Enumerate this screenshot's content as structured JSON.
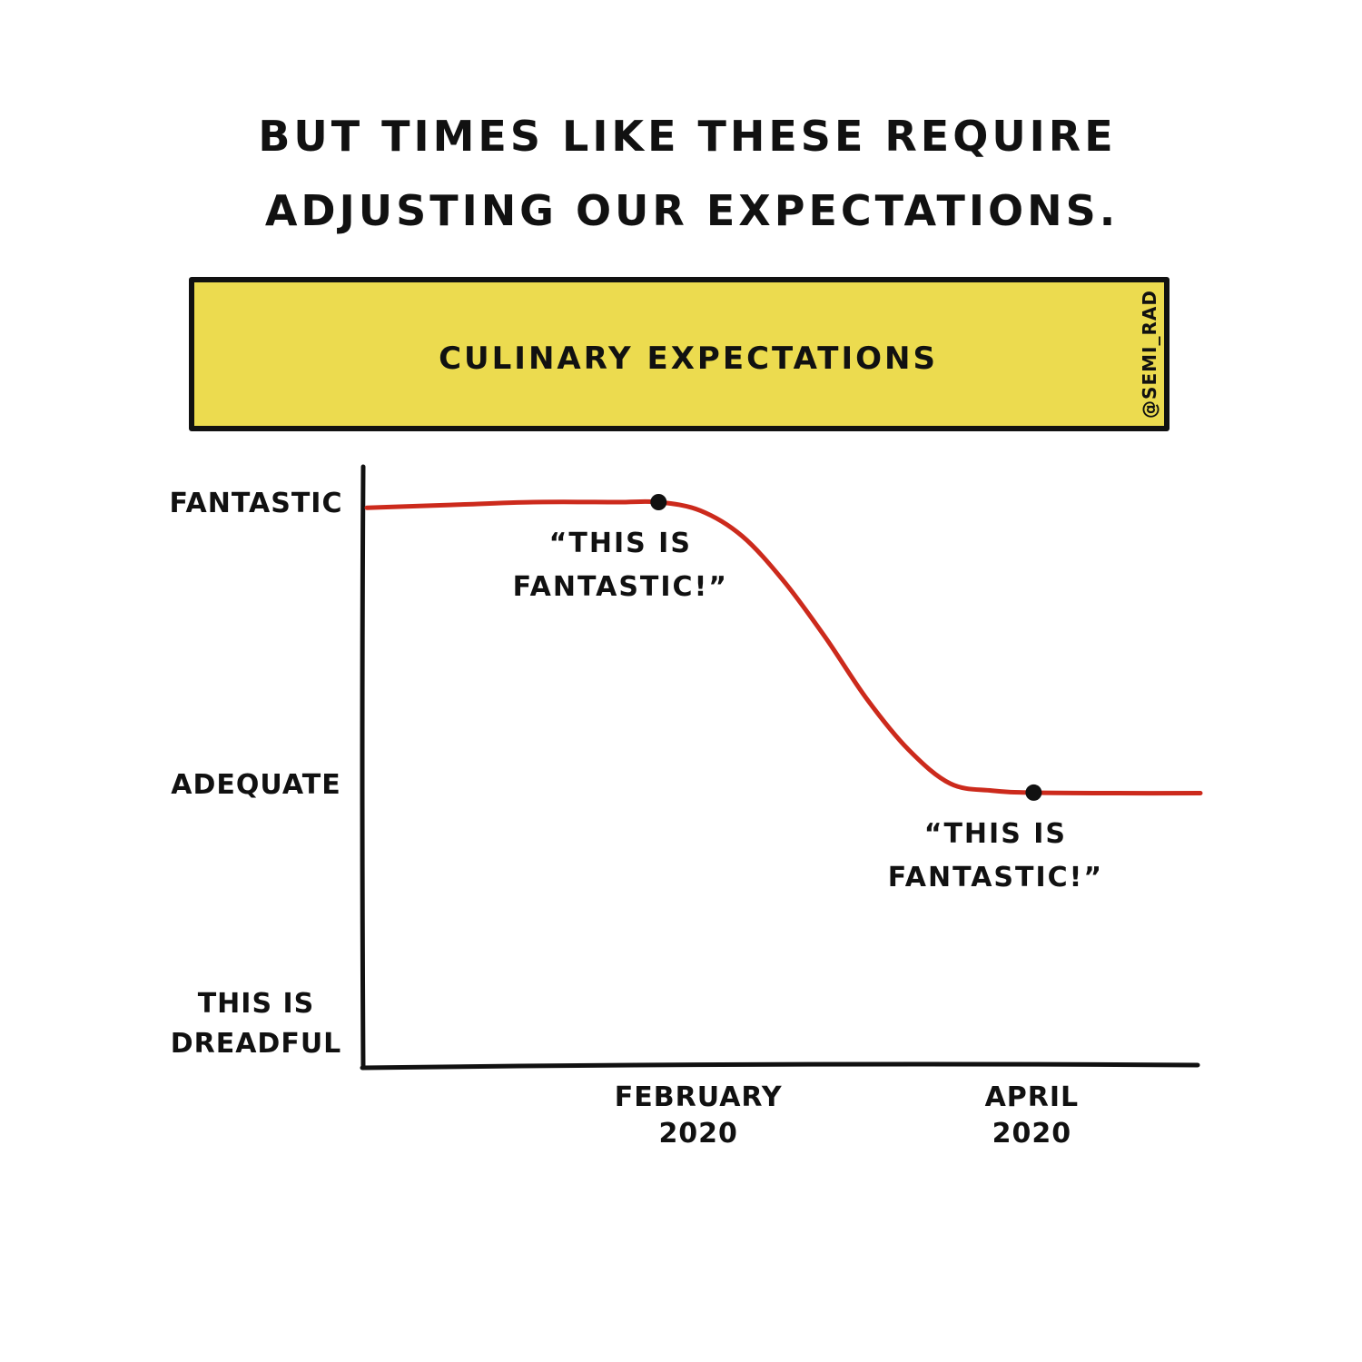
{
  "caption": {
    "line1": "BUT TIMES LIKE THESE REQUIRE",
    "line2": "ADJUSTING OUR EXPECTATIONS."
  },
  "banner": {
    "title": "CULINARY EXPECTATIONS",
    "handle": "@SEMI_RAD",
    "color": "#ecdb4f"
  },
  "chart_data": {
    "type": "line",
    "title": "CULINARY EXPECTATIONS",
    "xlabel": "",
    "ylabel": "",
    "x_ticks": [
      {
        "value": 2,
        "lines": [
          "FEBRUARY",
          "2020"
        ]
      },
      {
        "value": 4,
        "lines": [
          "APRIL",
          "2020"
        ]
      }
    ],
    "y_ticks": [
      {
        "value": 2,
        "lines": [
          "FANTASTIC"
        ]
      },
      {
        "value": 1,
        "lines": [
          "ADEQUATE"
        ]
      },
      {
        "value": 0,
        "lines": [
          "THIS IS",
          "DREADFUL"
        ]
      }
    ],
    "xlim": [
      0,
      5
    ],
    "ylim": [
      0,
      2
    ],
    "grid": false,
    "series": [
      {
        "color": "#cc2a1c",
        "points": [
          [
            0.0,
            1.98
          ],
          [
            0.5,
            1.99
          ],
          [
            1.0,
            2.0
          ],
          [
            1.5,
            2.0
          ],
          [
            1.75,
            2.0
          ],
          [
            2.0,
            1.97
          ],
          [
            2.25,
            1.88
          ],
          [
            2.5,
            1.72
          ],
          [
            2.75,
            1.52
          ],
          [
            3.0,
            1.3
          ],
          [
            3.25,
            1.12
          ],
          [
            3.5,
            1.0
          ],
          [
            3.75,
            0.975
          ],
          [
            4.0,
            0.968
          ],
          [
            4.5,
            0.966
          ],
          [
            5.0,
            0.966
          ]
        ],
        "markers": [
          {
            "x": 1.75,
            "y": 2.0,
            "label_lines": [
              "“THIS IS",
              "FANTASTIC!”"
            ]
          },
          {
            "x": 4.0,
            "y": 0.968,
            "label_lines": [
              "“THIS IS",
              "FANTASTIC!”"
            ]
          }
        ]
      }
    ]
  }
}
